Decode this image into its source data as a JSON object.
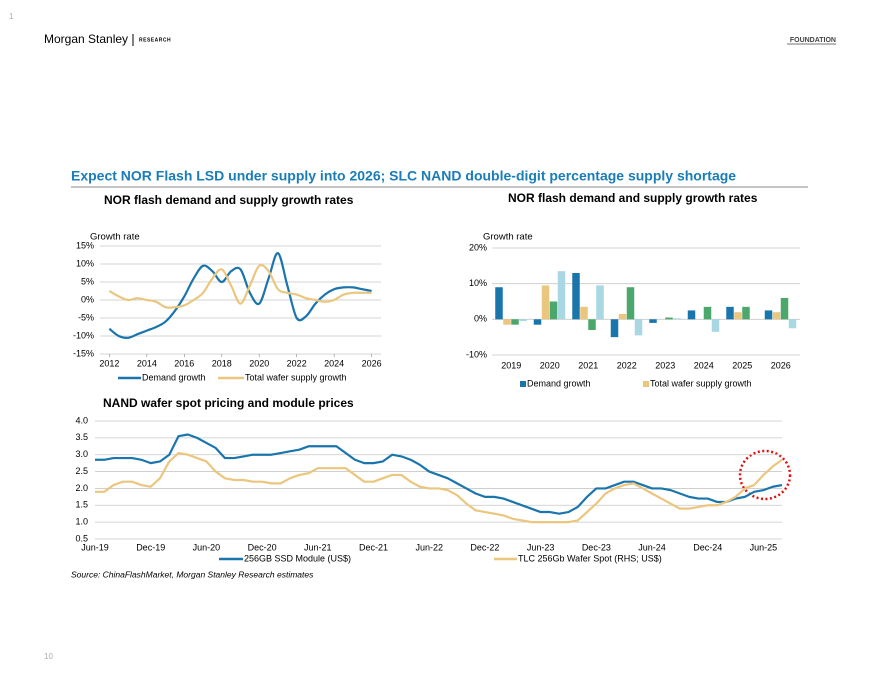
{
  "page": {
    "number": "1",
    "brand": "Morgan Stanley",
    "division": "RESEARCH",
    "label": "FOUNDATION",
    "headline": "Expect NOR Flash LSD under supply into 2026; SLC NAND double-digit percentage supply shortage",
    "source": "Source: ChinaFlashMarket, Morgan Stanley Research estimates",
    "footer_number": "10"
  },
  "chart_data": [
    {
      "type": "line",
      "title": "NOR flash demand and supply growth rates",
      "y_label": "Growth rate",
      "x": [
        2012,
        2012.5,
        2013,
        2013.5,
        2014,
        2014.5,
        2015,
        2015.5,
        2016,
        2016.5,
        2017,
        2017.5,
        2018,
        2018.5,
        2019,
        2019.5,
        2020,
        2020.5,
        2021,
        2021.5,
        2022,
        2022.5,
        2023,
        2023.5,
        2024,
        2024.5,
        2025,
        2025.5,
        2026
      ],
      "xlim": [
        2011.5,
        2026.5
      ],
      "xticks": [
        2012,
        2014,
        2016,
        2018,
        2020,
        2022,
        2024,
        2026
      ],
      "ylim": [
        -15,
        15
      ],
      "yticks": [
        {
          "value": -15,
          "label": "-15%"
        },
        {
          "value": -10,
          "label": "-10%"
        },
        {
          "value": -5,
          "label": "-5%"
        },
        {
          "value": 0,
          "label": "0%"
        },
        {
          "value": 5,
          "label": "5%"
        },
        {
          "value": 10,
          "label": "10%"
        },
        {
          "value": 15,
          "label": "15%"
        }
      ],
      "grid": true,
      "legend": "bottom",
      "series": [
        {
          "name": "Demand growth",
          "color": "#1b75ad",
          "values": [
            -8,
            -10,
            -10.5,
            -9.5,
            -8.5,
            -7.5,
            -6,
            -3,
            1,
            6,
            9.5,
            8,
            5,
            8,
            8.5,
            2,
            -1,
            6,
            13,
            4,
            -5,
            -4.5,
            -1,
            1.5,
            3,
            3.5,
            3.5,
            3,
            2.5
          ]
        },
        {
          "name": "Total wafer supply growth",
          "color": "#eac67f",
          "values": [
            2.5,
            1,
            0,
            0.5,
            0,
            -0.5,
            -2,
            -2,
            -1.5,
            0,
            2,
            6,
            8.5,
            4,
            -1,
            4,
            9.5,
            8,
            3,
            2,
            1.5,
            0.5,
            0,
            -0.5,
            0,
            1.5,
            2,
            2,
            2
          ]
        }
      ]
    },
    {
      "type": "bar",
      "title": "NOR flash demand and supply growth rates",
      "y_label": "Growth rate",
      "categories": [
        "2019",
        "2020",
        "2021",
        "2022",
        "2023",
        "2024",
        "2025",
        "2026"
      ],
      "ylim": [
        -10,
        20
      ],
      "yticks": [
        {
          "value": -10,
          "label": "-10%"
        },
        {
          "value": 0,
          "label": "0%"
        },
        {
          "value": 10,
          "label": "10%"
        },
        {
          "value": 20,
          "label": "20%"
        }
      ],
      "grid": true,
      "legend": "bottom",
      "series": [
        {
          "name": "Demand growth",
          "color": "#1b75ad",
          "values": [
            9,
            -1.5,
            13,
            -5,
            -1,
            2.5,
            3.5,
            2.5
          ]
        },
        {
          "name": "Total wafer supply growth",
          "color": "#eac67f",
          "values": [
            -1.5,
            9.5,
            3.5,
            1.5,
            0,
            0,
            2,
            2
          ]
        },
        {
          "color": "#4ba76b",
          "values": [
            -1.5,
            5,
            -3,
            9,
            0.5,
            3.5,
            3.5,
            6
          ]
        },
        {
          "color": "#a9d7e4",
          "values": [
            -0.5,
            13.5,
            9.5,
            -4.5,
            0.3,
            -3.5,
            0,
            -2.5
          ]
        }
      ]
    },
    {
      "type": "line",
      "title": "NAND wafer spot pricing and module prices",
      "categories": [
        "Jun-19",
        null,
        null,
        null,
        null,
        null,
        "Dec-19",
        null,
        null,
        null,
        null,
        null,
        "Jun-20",
        null,
        null,
        null,
        null,
        null,
        "Dec-20",
        null,
        null,
        null,
        null,
        null,
        "Jun-21",
        null,
        null,
        null,
        null,
        null,
        "Dec-21",
        null,
        null,
        null,
        null,
        null,
        "Jun-22",
        null,
        null,
        null,
        null,
        null,
        "Dec-22",
        null,
        null,
        null,
        null,
        null,
        "Jun-23",
        null,
        null,
        null,
        null,
        null,
        "Dec-23",
        null,
        null,
        null,
        null,
        null,
        "Jun-24",
        null,
        null,
        null,
        null,
        null,
        "Dec-24",
        null,
        null,
        null,
        null,
        null,
        "Jun-25",
        null,
        null
      ],
      "ylim": [
        0.5,
        4.0
      ],
      "yticks": [
        0.5,
        {
          "value": 1.0,
          "label": "1.0"
        },
        1.5,
        {
          "value": 2.0,
          "label": "2.0"
        },
        2.5,
        {
          "value": 3.0,
          "label": "3.0"
        },
        3.5,
        {
          "value": 4.0,
          "label": "4.0"
        }
      ],
      "grid": true,
      "legend": "bottom",
      "series": [
        {
          "name": "256GB SSD Module (US$)",
          "color": "#1b75ad",
          "values": [
            2.85,
            2.85,
            2.9,
            2.9,
            2.9,
            2.85,
            2.75,
            2.8,
            3.0,
            3.55,
            3.6,
            3.5,
            3.35,
            3.2,
            2.9,
            2.9,
            2.95,
            3.0,
            3.0,
            3.0,
            3.05,
            3.1,
            3.15,
            3.25,
            3.25,
            3.25,
            3.25,
            3.05,
            2.85,
            2.75,
            2.75,
            2.8,
            3.0,
            2.95,
            2.85,
            2.7,
            2.5,
            2.4,
            2.3,
            2.15,
            2.0,
            1.85,
            1.75,
            1.75,
            1.7,
            1.6,
            1.5,
            1.4,
            1.3,
            1.3,
            1.25,
            1.3,
            1.45,
            1.75,
            2.0,
            2.0,
            2.1,
            2.2,
            2.2,
            2.1,
            2.0,
            2.0,
            1.95,
            1.85,
            1.75,
            1.7,
            1.7,
            1.6,
            1.6,
            1.7,
            1.75,
            1.9,
            1.95,
            2.05,
            2.1
          ]
        },
        {
          "name": "TLC 256Gb Wafer Spot (RHS; US$)",
          "color": "#eac67f",
          "values": [
            1.9,
            1.9,
            2.1,
            2.2,
            2.2,
            2.1,
            2.05,
            2.3,
            2.8,
            3.05,
            3.0,
            2.9,
            2.8,
            2.5,
            2.3,
            2.25,
            2.25,
            2.2,
            2.2,
            2.15,
            2.15,
            2.3,
            2.4,
            2.45,
            2.6,
            2.6,
            2.6,
            2.6,
            2.4,
            2.2,
            2.2,
            2.3,
            2.4,
            2.4,
            2.2,
            2.05,
            2.0,
            2.0,
            1.95,
            1.8,
            1.55,
            1.35,
            1.3,
            1.25,
            1.2,
            1.1,
            1.05,
            1.0,
            1.0,
            1.0,
            1.0,
            1.0,
            1.05,
            1.3,
            1.55,
            1.85,
            2.0,
            2.1,
            2.15,
            2.0,
            1.85,
            1.7,
            1.55,
            1.4,
            1.4,
            1.45,
            1.5,
            1.5,
            1.6,
            1.75,
            2.0,
            2.1,
            2.4,
            2.65,
            2.85
          ]
        }
      ]
    }
  ]
}
